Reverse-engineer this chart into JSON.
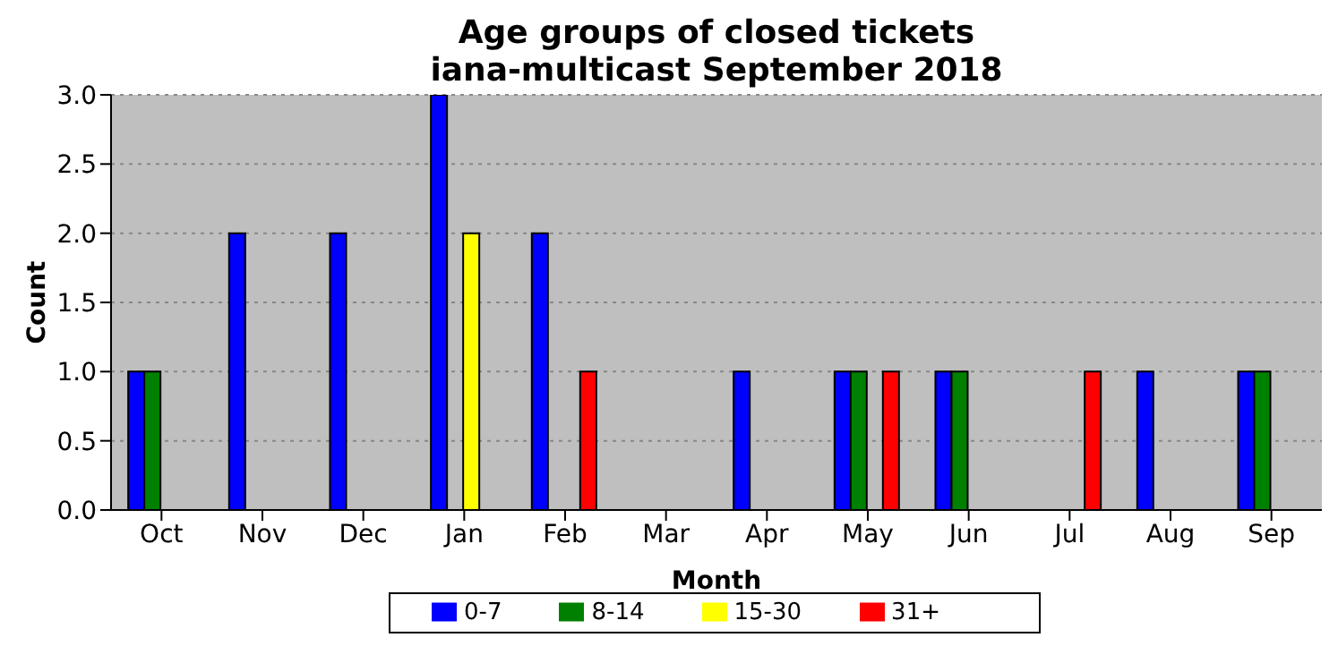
{
  "chart_data": {
    "type": "bar",
    "title": "Age groups of closed tickets\niana-multicast September 2018",
    "xlabel": "Month",
    "ylabel": "Count",
    "categories": [
      "Oct",
      "Nov",
      "Dec",
      "Jan",
      "Feb",
      "Mar",
      "Apr",
      "May",
      "Jun",
      "Jul",
      "Aug",
      "Sep"
    ],
    "series": [
      {
        "name": "0-7",
        "color": "#0000ff",
        "values": [
          1,
          2,
          2,
          3,
          2,
          0,
          1,
          1,
          1,
          0,
          1,
          1
        ]
      },
      {
        "name": "8-14",
        "color": "#008000",
        "values": [
          1,
          0,
          0,
          0,
          0,
          0,
          0,
          1,
          1,
          0,
          0,
          1
        ]
      },
      {
        "name": "15-30",
        "color": "#ffff00",
        "values": [
          0,
          0,
          0,
          2,
          0,
          0,
          0,
          0,
          0,
          0,
          0,
          0
        ]
      },
      {
        "name": "31+",
        "color": "#ff0000",
        "values": [
          0,
          0,
          0,
          0,
          1,
          0,
          0,
          1,
          0,
          1,
          0,
          0
        ]
      }
    ],
    "ylim": [
      0,
      3
    ],
    "yticks": [
      {
        "value": 0,
        "label": "0.0"
      },
      {
        "value": 0.5,
        "label": "0.5"
      },
      {
        "value": 1,
        "label": "1.0"
      },
      {
        "value": 1.5,
        "label": "1.5"
      },
      {
        "value": 2,
        "label": "2.0"
      },
      {
        "value": 2.5,
        "label": "2.5"
      },
      {
        "value": 3,
        "label": "3.0"
      }
    ],
    "grid": "y",
    "legend": "bottom"
  }
}
